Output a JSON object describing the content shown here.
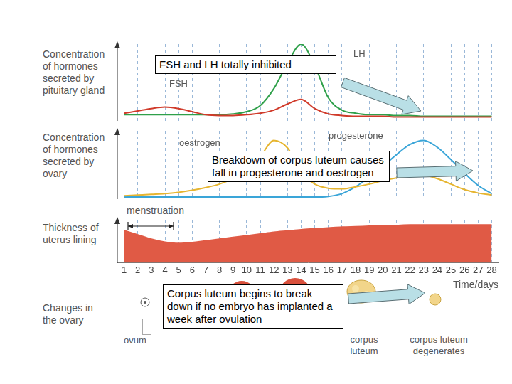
{
  "chart_data": [
    {
      "type": "line",
      "ylabel": [
        "Concentration",
        "of hormones",
        "secreted by",
        "pituitary gland"
      ],
      "x": [
        1,
        2,
        3,
        4,
        5,
        6,
        7,
        8,
        9,
        10,
        11,
        12,
        13,
        14,
        15,
        16,
        17,
        18,
        19,
        20,
        21,
        22,
        23,
        24,
        25,
        26,
        27,
        28
      ],
      "xlim": [
        0.5,
        28.5
      ],
      "xticks": [
        1,
        2,
        3,
        4,
        5,
        6,
        7,
        8,
        9,
        10,
        11,
        12,
        13,
        14,
        15,
        16,
        17,
        18,
        19,
        20,
        21,
        22,
        23,
        24,
        25,
        26,
        27,
        28
      ],
      "ylim": [
        0,
        100
      ],
      "grid": true,
      "tick_labels": false,
      "series": [
        {
          "name": "FSH",
          "color": "#d03a2a",
          "values": [
            10,
            13,
            16,
            18,
            16,
            12,
            8,
            7,
            7,
            8,
            10,
            14,
            22,
            28,
            16,
            9,
            7,
            6,
            6,
            6,
            5,
            5,
            5,
            5,
            5,
            5,
            5,
            5
          ]
        },
        {
          "name": "LH",
          "color": "#2fa04a",
          "values": [
            8,
            8,
            8,
            8,
            8,
            8,
            8,
            8,
            9,
            12,
            20,
            42,
            75,
            100,
            72,
            30,
            14,
            10,
            8,
            8,
            7,
            7,
            6,
            6,
            6,
            6,
            6,
            6
          ]
        }
      ],
      "annotations": [
        "FSH and LH totally inhibited"
      ]
    },
    {
      "type": "line",
      "ylabel": [
        "Concentration",
        "of hormones",
        "secreted by",
        "ovary"
      ],
      "x": [
        1,
        2,
        3,
        4,
        5,
        6,
        7,
        8,
        9,
        10,
        11,
        12,
        13,
        14,
        15,
        16,
        17,
        18,
        19,
        20,
        21,
        22,
        23,
        24,
        25,
        26,
        27,
        28
      ],
      "xlim": [
        0.5,
        28.5
      ],
      "xticks": [
        1,
        2,
        3,
        4,
        5,
        6,
        7,
        8,
        9,
        10,
        11,
        12,
        13,
        14,
        15,
        16,
        17,
        18,
        19,
        20,
        21,
        22,
        23,
        24,
        25,
        26,
        27,
        28
      ],
      "ylim": [
        0,
        100
      ],
      "grid": true,
      "tick_labels": false,
      "series": [
        {
          "name": "oestrogen",
          "color": "#e6b530",
          "values": [
            5,
            6,
            7,
            8,
            10,
            13,
            17,
            22,
            30,
            42,
            62,
            86,
            75,
            40,
            22,
            16,
            15,
            18,
            22,
            27,
            31,
            34,
            35,
            30,
            22,
            14,
            9,
            6
          ]
        },
        {
          "name": "progesterone",
          "color": "#3aa5d8",
          "values": [
            3,
            3,
            3,
            3,
            3,
            3,
            3,
            3,
            3,
            3,
            3,
            3,
            3,
            3,
            3,
            4,
            8,
            18,
            32,
            48,
            65,
            80,
            86,
            76,
            58,
            38,
            20,
            8
          ]
        }
      ],
      "annotations": [
        "Breakdown of corpus luteum causes fall in progesterone and oestrogen"
      ]
    },
    {
      "type": "area",
      "ylabel": [
        "Thickness of",
        "uterus lining"
      ],
      "xlabel": "Time/days",
      "x": [
        1,
        2,
        3,
        4,
        5,
        6,
        7,
        8,
        9,
        10,
        11,
        12,
        13,
        14,
        15,
        16,
        17,
        18,
        19,
        20,
        21,
        22,
        23,
        24,
        25,
        26,
        27,
        28
      ],
      "xlim": [
        0.5,
        28.5
      ],
      "xticks": [
        1,
        2,
        3,
        4,
        5,
        6,
        7,
        8,
        9,
        10,
        11,
        12,
        13,
        14,
        15,
        16,
        17,
        18,
        19,
        20,
        21,
        22,
        23,
        24,
        25,
        26,
        27,
        28
      ],
      "ylim": [
        0,
        100
      ],
      "grid": true,
      "tick_labels": "x",
      "color": "#e05a45",
      "values": [
        75,
        65,
        55,
        48,
        45,
        47,
        51,
        55,
        59,
        63,
        67,
        71,
        74,
        77,
        79,
        81,
        83,
        84,
        85,
        86,
        87,
        88,
        88,
        88,
        88,
        88,
        88,
        88
      ],
      "annotations": [
        "menstruation"
      ]
    }
  ],
  "ovary_changes": {
    "label": [
      "Changes in",
      "the ovary"
    ],
    "stages": [
      "ovum",
      "corpus luteum",
      "corpus luteum degenerates"
    ],
    "annotation": "Corpus luteum begins to break down if no embryo has implanted a week after ovulation"
  }
}
